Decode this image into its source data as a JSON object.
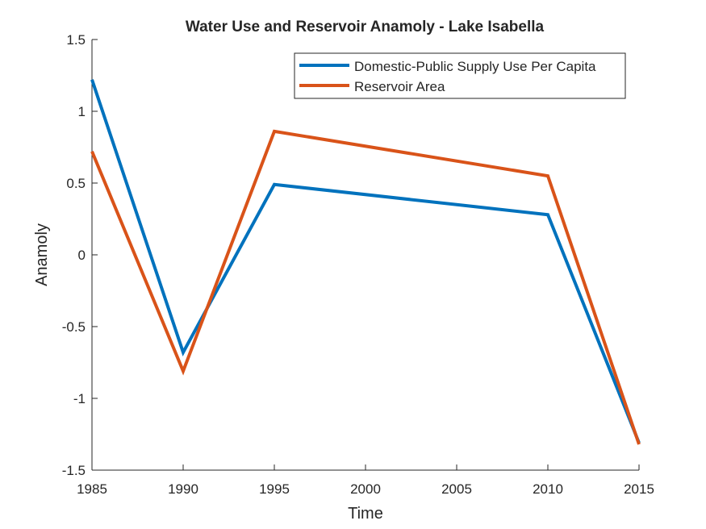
{
  "chart_data": {
    "type": "line",
    "title": "Water Use and Reservoir Anamoly - Lake Isabella",
    "xlabel": "Time",
    "ylabel": "Anamoly",
    "xlim": [
      1985,
      2015
    ],
    "ylim": [
      -1.5,
      1.5
    ],
    "xticks": [
      1985,
      1990,
      1995,
      2000,
      2005,
      2010,
      2015
    ],
    "xtick_labels": [
      "1985",
      "1990",
      "1995",
      "2000",
      "2005",
      "2010",
      "2015"
    ],
    "yticks": [
      -1.5,
      -1,
      -0.5,
      0,
      0.5,
      1,
      1.5
    ],
    "ytick_labels": [
      "-1.5",
      "-1",
      "-0.5",
      "0",
      "0.5",
      "1",
      "1.5"
    ],
    "x": [
      1985,
      1990,
      1995,
      2010,
      2015
    ],
    "series": [
      {
        "name": "Domestic-Public Supply Use Per Capita",
        "color": "#0072BD",
        "values": [
          1.22,
          -0.68,
          0.49,
          0.28,
          -1.31
        ]
      },
      {
        "name": "Reservoir Area",
        "color": "#D95319",
        "values": [
          0.72,
          -0.81,
          0.86,
          0.55,
          -1.32
        ]
      }
    ],
    "grid": false,
    "legend_position": "top-right"
  }
}
